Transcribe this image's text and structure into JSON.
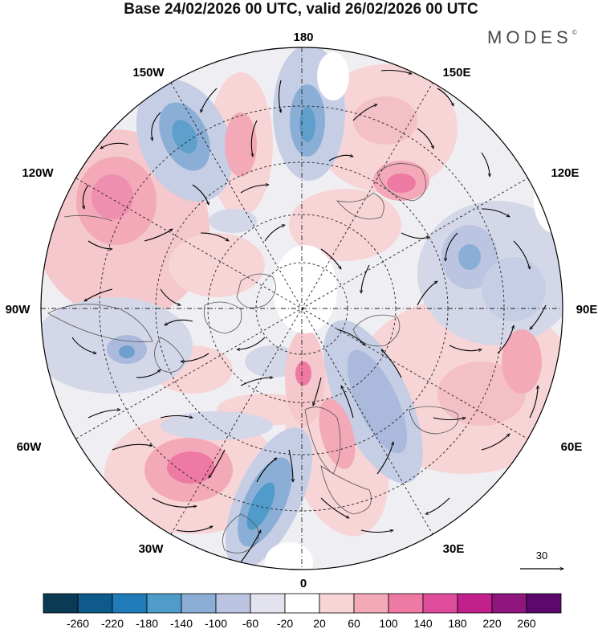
{
  "title": "Base 24/02/2026 00 UTC, valid 26/02/2026 00 UTC",
  "brand": {
    "name": "MODES",
    "mark": "©"
  },
  "map": {
    "projection": "north polar stereographic",
    "longitude_labels": {
      "top": "180",
      "top_left": "150W",
      "top_right": "150E",
      "upper_left": "120W",
      "upper_right": "120E",
      "left": "90W",
      "right": "90E",
      "lower_left": "60W",
      "lower_right": "60E",
      "bottom_left": "30W",
      "bottom_right": "30E",
      "bottom": "0"
    }
  },
  "reference_vector": {
    "label": "30"
  },
  "colorbar": {
    "ticks": [
      "-260",
      "-220",
      "-180",
      "-140",
      "-100",
      "-60",
      "-20",
      "20",
      "60",
      "100",
      "140",
      "180",
      "220",
      "260"
    ],
    "colors": [
      "#0b3a55",
      "#0e5a8a",
      "#1f7cb8",
      "#4f9ccb",
      "#8aaed5",
      "#bbc4e0",
      "#e3e3ef",
      "#ffffff",
      "#f7d4d6",
      "#f3a9b8",
      "#ee7aa4",
      "#e04c9c",
      "#c2208c",
      "#8f157f",
      "#5b0a6c"
    ]
  }
}
